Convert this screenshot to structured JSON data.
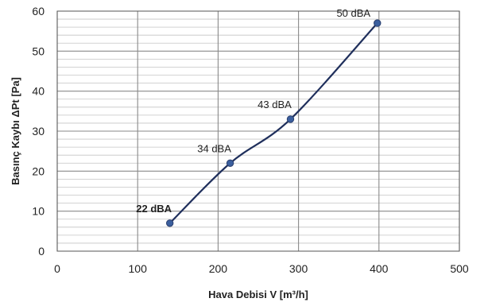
{
  "chart_data": {
    "type": "line",
    "title": "",
    "xlabel": "Hava Debisi V [m³/h]",
    "ylabel": "Basınç Kaybı ΔPt [Pa]",
    "xlim": [
      0,
      500
    ],
    "ylim": [
      0,
      60
    ],
    "xticks": [
      0,
      100,
      200,
      300,
      400,
      500
    ],
    "yticks": [
      0,
      10,
      20,
      30,
      40,
      50,
      60
    ],
    "x_major_gridlines": true,
    "y_minor_step": 2,
    "grid": true,
    "legend": "none",
    "line_color": "#1f2f5c",
    "marker_color": "#3b5f9e",
    "series": [
      {
        "points": [
          {
            "x": 140,
            "y": 7,
            "label": "22 dBA"
          },
          {
            "x": 215,
            "y": 22,
            "label": "34 dBA"
          },
          {
            "x": 290,
            "y": 33,
            "label": "43 dBA"
          },
          {
            "x": 398,
            "y": 57,
            "label": "50 dBA"
          }
        ]
      }
    ]
  }
}
